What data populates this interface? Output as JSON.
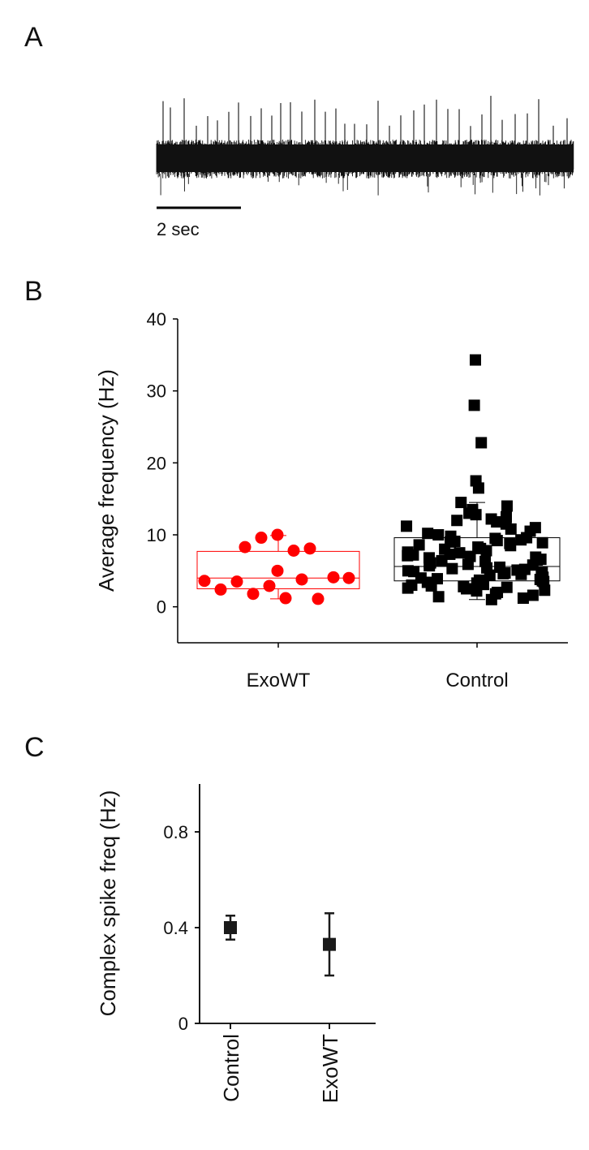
{
  "panels": {
    "a": {
      "label": "A",
      "scalebar_label": "2 sec"
    },
    "b": {
      "label": "B"
    },
    "c": {
      "label": "C"
    }
  },
  "chart_data": [
    {
      "type": "scatter",
      "panel": "B",
      "title": "",
      "xlabel": "",
      "ylabel": "Average frequency (Hz)",
      "categories": [
        "ExoWT",
        "Control"
      ],
      "ylim": [
        -5,
        40
      ],
      "yticks": [
        0,
        10,
        20,
        30,
        40
      ],
      "box_summary": [
        {
          "category": "ExoWT",
          "q1": 2.5,
          "median": 4.0,
          "q3": 7.7,
          "whisker_low": 1.1,
          "whisker_high": 9.9
        },
        {
          "category": "Control",
          "q1": 3.6,
          "median": 5.6,
          "q3": 9.6,
          "whisker_low": 1.0,
          "whisker_high": 14.5
        }
      ],
      "series": [
        {
          "category": "ExoWT",
          "marker": "circle",
          "color": "#ff0000",
          "values": [
            3.6,
            2.4,
            3.5,
            8.3,
            1.8,
            9.6,
            2.9,
            10.0,
            5.0,
            1.2,
            7.8,
            3.8,
            8.1,
            1.1,
            4.1,
            4.0
          ]
        },
        {
          "category": "Control",
          "marker": "square",
          "color": "#000000",
          "values": [
            34.3,
            28.0,
            22.8,
            17.5,
            16.5,
            14.5,
            14.0,
            13.5,
            13.0,
            12.8,
            12.5,
            12.2,
            12.0,
            11.8,
            11.5,
            11.2,
            11.0,
            10.8,
            10.5,
            10.2,
            10.0,
            9.8,
            9.6,
            9.5,
            9.3,
            9.1,
            9.0,
            8.8,
            8.6,
            8.5,
            8.3,
            8.1,
            8.0,
            7.8,
            7.6,
            7.5,
            7.3,
            7.1,
            7.0,
            6.8,
            6.6,
            6.5,
            6.3,
            6.1,
            6.0,
            5.8,
            5.7,
            5.5,
            5.4,
            5.3,
            5.1,
            5.0,
            4.9,
            4.8,
            4.6,
            4.5,
            4.4,
            4.3,
            4.1,
            4.0,
            3.9,
            3.8,
            3.6,
            3.5,
            3.4,
            3.3,
            3.1,
            3.0,
            2.9,
            2.8,
            2.6,
            2.5,
            2.3,
            2.2,
            2.0,
            1.8,
            1.6,
            1.4,
            1.2,
            1.0,
            9.2,
            8.9,
            7.2,
            6.4,
            5.9,
            4.7,
            3.7,
            2.7,
            6.9,
            5.2
          ]
        }
      ]
    },
    {
      "type": "scatter",
      "panel": "C",
      "title": "",
      "xlabel": "",
      "ylabel": "Complex spike freq (Hz)",
      "categories": [
        "Control",
        "ExoWT"
      ],
      "ylim": [
        0,
        1.0
      ],
      "yticks": [
        0,
        0.4,
        0.8
      ],
      "ytick_labels": [
        "0",
        "0.4",
        "0.8"
      ],
      "series": [
        {
          "marker": "square",
          "color": "#1a1a1a",
          "means": [
            0.4,
            0.33
          ],
          "error_low": [
            0.35,
            0.2
          ],
          "error_high": [
            0.45,
            0.46
          ]
        }
      ]
    }
  ]
}
